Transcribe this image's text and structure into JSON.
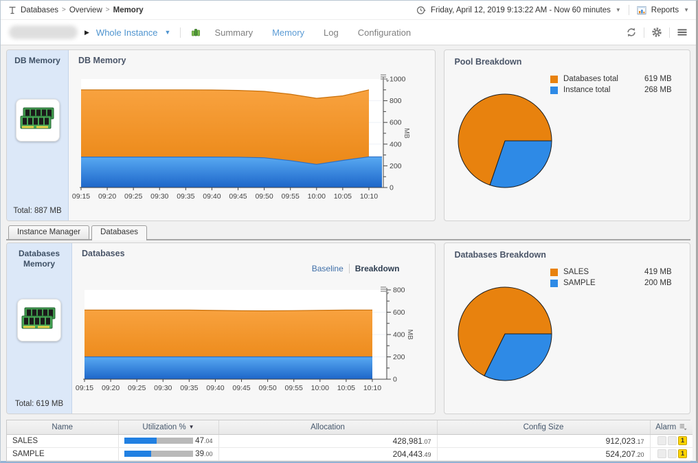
{
  "breadcrumb": {
    "items": [
      {
        "label": "Databases"
      },
      {
        "label": "Overview"
      },
      {
        "label": "Memory"
      }
    ],
    "separator": ">"
  },
  "topbar": {
    "time_range": "Friday, April 12, 2019 9:13:22 AM - Now 60 minutes",
    "reports_label": "Reports"
  },
  "navbar": {
    "context_label": "Whole Instance",
    "items": [
      {
        "label": "Summary"
      },
      {
        "label": "Memory"
      },
      {
        "label": "Log"
      },
      {
        "label": "Configuration"
      }
    ],
    "active_item": "Memory"
  },
  "panels": {
    "db_memory": {
      "sidebar_title": "DB Memory",
      "chart_title": "DB Memory",
      "total": "Total: 887 MB"
    },
    "pool_breakdown": {
      "title": "Pool Breakdown",
      "legend": [
        {
          "label": "Databases total",
          "value": "619 MB",
          "color": "#e8820e"
        },
        {
          "label": "Instance total",
          "value": "268 MB",
          "color": "#2e8ae6"
        }
      ]
    },
    "databases": {
      "sidebar_title": "Databases Memory",
      "chart_title": "Databases",
      "total": "Total: 619 MB",
      "toggle": {
        "baseline": "Baseline",
        "breakdown": "Breakdown",
        "active": "Breakdown"
      }
    },
    "databases_breakdown": {
      "title": "Databases Breakdown",
      "legend": [
        {
          "label": "SALES",
          "value": "419 MB",
          "color": "#e8820e"
        },
        {
          "label": "SAMPLE",
          "value": "200 MB",
          "color": "#2e8ae6"
        }
      ]
    }
  },
  "tabs": [
    {
      "label": "Instance Manager",
      "active": false
    },
    {
      "label": "Databases",
      "active": true
    }
  ],
  "table": {
    "headers": {
      "name": "Name",
      "utilization": "Utilization %",
      "allocation": "Allocation",
      "config_size": "Config Size",
      "alarm": "Alarm"
    },
    "rows": [
      {
        "name": "SALES",
        "util_int": "47",
        "util_dec": "04",
        "util_pct": 47.04,
        "alloc_int": "428,981",
        "alloc_dec": "07",
        "config_int": "912,023",
        "config_dec": "17",
        "alarm_warning": "1"
      },
      {
        "name": "SAMPLE",
        "util_int": "39",
        "util_dec": "00",
        "util_pct": 39.0,
        "alloc_int": "204,443",
        "alloc_dec": "49",
        "config_int": "524,207",
        "config_dec": "20",
        "alarm_warning": "1"
      }
    ]
  },
  "chart_data": [
    {
      "type": "area",
      "title": "DB Memory",
      "stacked": true,
      "ylabel": "MB",
      "ylim": [
        0,
        1000
      ],
      "yticks": [
        0,
        200,
        400,
        600,
        800,
        1000
      ],
      "y_minor_step": 100,
      "x": [
        "09:15",
        "09:20",
        "09:25",
        "09:30",
        "09:35",
        "09:40",
        "09:45",
        "09:50",
        "09:55",
        "10:00",
        "10:05",
        "10:10"
      ],
      "series": [
        {
          "name": "Instance total",
          "color": "blue",
          "cumulative_values": [
            281,
            281,
            281,
            281,
            281,
            281,
            280,
            274,
            248,
            213,
            250,
            283
          ],
          "extend_right": true
        },
        {
          "name": "Databases total",
          "color": "orange",
          "cumulative_values": [
            900,
            900,
            900,
            900,
            900,
            899,
            895,
            886,
            860,
            822,
            845,
            900
          ],
          "extend_right": false
        }
      ]
    },
    {
      "type": "area",
      "title": "Databases",
      "stacked": true,
      "ylabel": "MB",
      "ylim": [
        0,
        800
      ],
      "yticks": [
        0,
        200,
        400,
        600,
        800
      ],
      "y_minor_step": 100,
      "x": [
        "09:15",
        "09:20",
        "09:25",
        "09:30",
        "09:35",
        "09:40",
        "09:45",
        "09:50",
        "09:55",
        "10:00",
        "10:05",
        "10:10"
      ],
      "series": [
        {
          "name": "SAMPLE",
          "color": "blue",
          "cumulative_values": [
            200,
            200,
            200,
            200,
            200,
            200,
            200,
            200,
            200,
            200,
            200,
            200
          ],
          "extend_right": false
        },
        {
          "name": "SALES",
          "color": "orange",
          "cumulative_values": [
            620,
            620,
            620,
            620,
            619,
            616,
            613,
            612,
            614,
            617,
            619,
            620
          ],
          "extend_right": false
        }
      ]
    },
    {
      "type": "pie",
      "title": "Pool Breakdown",
      "labels": [
        "Databases total",
        "Instance total"
      ],
      "values": [
        619,
        268
      ],
      "unit": "MB",
      "colors": [
        "#e8820e",
        "#2e8ae6"
      ],
      "legend_position": "top-right"
    },
    {
      "type": "pie",
      "title": "Databases Breakdown",
      "labels": [
        "SALES",
        "SAMPLE"
      ],
      "values": [
        419,
        200
      ],
      "unit": "MB",
      "colors": [
        "#e8820e",
        "#2e8ae6"
      ],
      "legend_position": "top-right"
    }
  ],
  "colors": {
    "accent_blue": "#5b9bd5",
    "chart_orange": "#e8820e",
    "chart_blue": "#2e8ae6",
    "alarm_yellow": "#ffd400",
    "bar_blue": "#2180e2"
  }
}
